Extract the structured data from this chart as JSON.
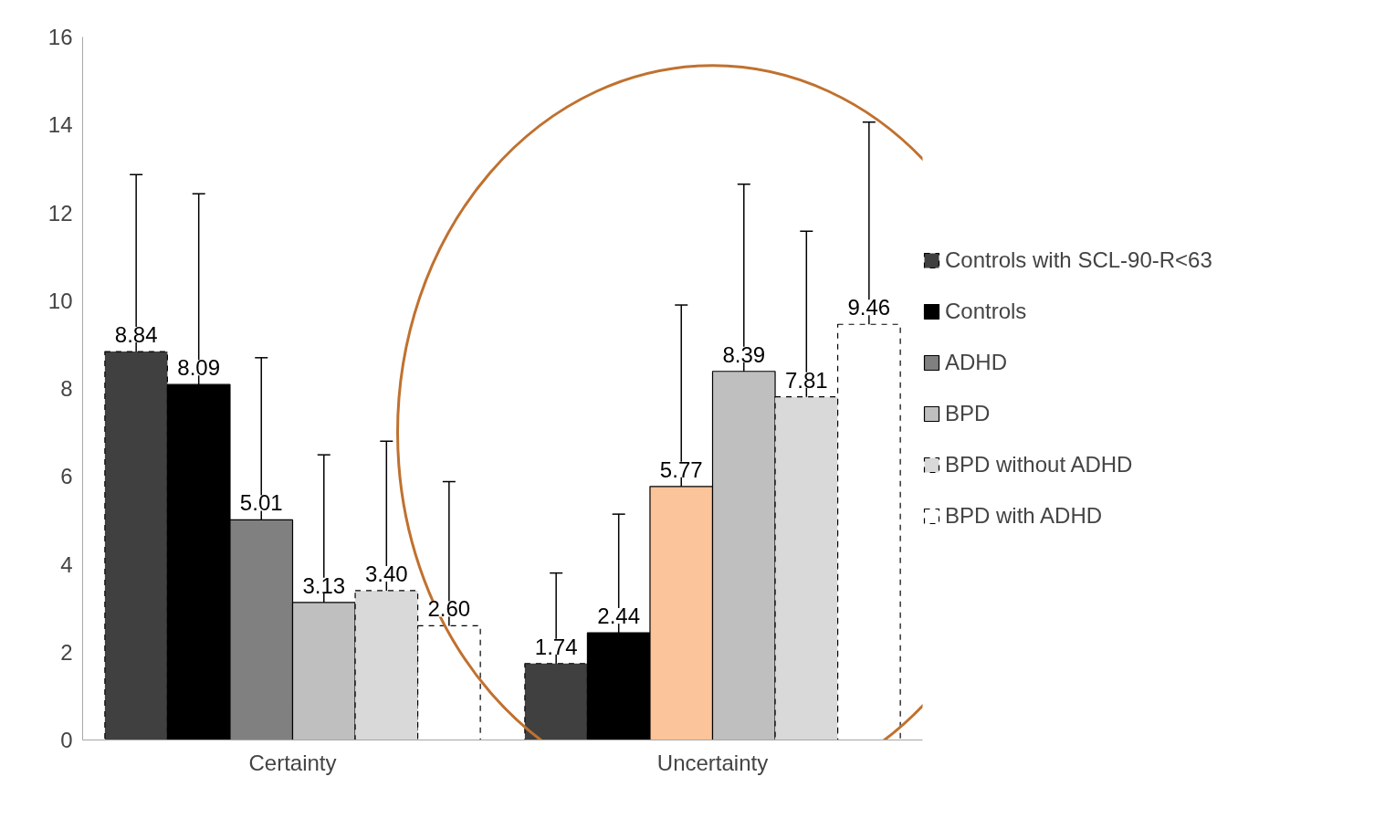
{
  "chart_data": {
    "type": "bar",
    "categories": [
      "Certainty",
      "Uncertainty"
    ],
    "ylim": [
      0,
      16
    ],
    "yticks": [
      0,
      2,
      4,
      6,
      8,
      10,
      12,
      14,
      16
    ],
    "grid": false,
    "legend": "right",
    "series": [
      {
        "name": "Controls with SCL-90-R<63",
        "color": "#404040",
        "line_style": "dashed",
        "values": [
          8.84,
          1.74
        ],
        "value_labels": [
          "8.84",
          "1.74"
        ],
        "errors": [
          4.03,
          [
            0,
            3.8
          ]
        ]
      },
      {
        "name": "Controls",
        "color": "#000000",
        "values": [
          8.09,
          2.44
        ],
        "value_labels": [
          "8.09",
          "2.44"
        ],
        "errors": [
          4.34,
          [
            0,
            5.14
          ]
        ]
      },
      {
        "name": "ADHD",
        "color": "#808080",
        "colors": [
          "#808080",
          "#fbc49a"
        ],
        "values": [
          5.01,
          5.77
        ],
        "value_labels": [
          "5.01",
          "5.77"
        ],
        "errors": [
          3.69,
          4.13
        ]
      },
      {
        "name": "BPD",
        "color": "#bfbfbf",
        "values": [
          3.13,
          8.39
        ],
        "value_labels": [
          "3.13",
          "8.39"
        ],
        "errors": [
          [
            0,
            6.49
          ],
          4.26
        ]
      },
      {
        "name": "BPD without ADHD",
        "color": "#d9d9d9",
        "line_style": "dashed",
        "values": [
          3.4,
          7.81
        ],
        "value_labels": [
          "3.40",
          "7.81"
        ],
        "errors": [
          [
            0,
            6.8
          ],
          3.77
        ]
      },
      {
        "name": "BPD with ADHD",
        "color": "#ffffff",
        "line_style": "dashed",
        "values": [
          2.6,
          9.46
        ],
        "value_labels": [
          "2.60",
          "9.46"
        ],
        "errors": [
          [
            0,
            5.88
          ],
          4.6
        ]
      }
    ]
  }
}
